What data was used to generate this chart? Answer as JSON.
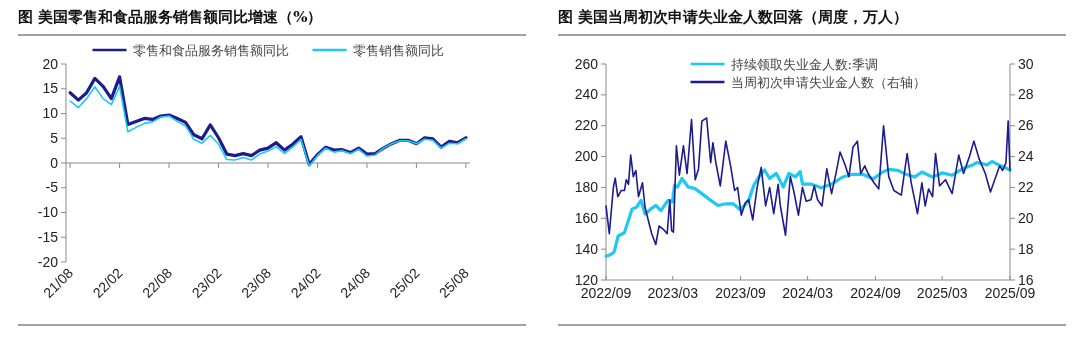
{
  "chart_data": [
    {
      "type": "line",
      "title": "图   美国零售和食品服务销售额同比增速（%）",
      "categories": [
        "21/08",
        null,
        null,
        null,
        null,
        null,
        "22/02",
        null,
        null,
        null,
        null,
        null,
        "22/08",
        null,
        null,
        null,
        null,
        null,
        "23/02",
        null,
        null,
        null,
        null,
        null,
        "23/08",
        null,
        null,
        null,
        null,
        null,
        "24/02",
        null,
        null,
        null,
        null,
        null,
        "24/08",
        null,
        null,
        null,
        null,
        null,
        "25/02",
        null,
        null,
        null,
        null,
        null,
        "25/08"
      ],
      "series": [
        {
          "name": "零售和食品服务销售额同比",
          "color": "#1c1c8c",
          "values": [
            14.2,
            12.7,
            14.2,
            17.1,
            15.5,
            13.0,
            17.4,
            7.8,
            8.4,
            9.0,
            8.8,
            9.5,
            9.7,
            9.0,
            8.2,
            5.7,
            4.9,
            7.7,
            5.1,
            1.8,
            1.5,
            1.9,
            1.5,
            2.6,
            3.0,
            4.1,
            2.6,
            3.8,
            5.3,
            -0.3,
            1.7,
            3.2,
            2.6,
            2.7,
            2.1,
            3.0,
            1.8,
            1.9,
            3.0,
            3.9,
            4.6,
            4.6,
            3.9,
            5.1,
            4.9,
            3.2,
            4.4,
            4.1,
            5.1
          ]
        },
        {
          "name": "零售销售额同比",
          "color": "#1ec8f0",
          "values": [
            12.5,
            11.2,
            13.0,
            15.4,
            13.0,
            11.8,
            15.5,
            6.3,
            7.2,
            8.0,
            8.3,
            9.3,
            9.5,
            8.4,
            7.5,
            4.8,
            4.0,
            5.6,
            3.8,
            0.7,
            0.6,
            1.1,
            0.6,
            1.8,
            2.4,
            3.3,
            1.9,
            3.2,
            4.8,
            -0.6,
            1.5,
            3.0,
            2.2,
            2.5,
            1.9,
            2.8,
            1.4,
            1.6,
            3.0,
            3.9,
            4.5,
            4.5,
            3.9,
            4.8,
            4.6,
            3.0,
            4.0,
            3.9,
            4.9
          ]
        }
      ],
      "ylim": [
        -20,
        20
      ],
      "yticks": [
        -20,
        -15,
        -10,
        -5,
        0,
        5,
        10,
        15,
        20
      ],
      "legend": "top"
    },
    {
      "type": "line",
      "title": "图   美国当周初次申请失业金人数回落（周度，万人）",
      "series": [
        {
          "name": "持续领取失业金人数:季调",
          "color": "#1ec8f0",
          "x": [
            "2022-09-01",
            "2022-09-14",
            "2022-09-23",
            "2022-10-04",
            "2022-10-21",
            "2022-11-11",
            "2022-11-23",
            "2022-12-05",
            "2022-12-16",
            "2023-01-01",
            "2023-01-14",
            "2023-01-28",
            "2023-02-16",
            "2023-02-28",
            "2023-03-06",
            "2023-03-14",
            "2023-03-26",
            "2023-04-12",
            "2023-05-01",
            "2023-05-19",
            "2023-06-12",
            "2023-07-02",
            "2023-07-23",
            "2023-08-12",
            "2023-09-01",
            "2023-09-23",
            "2023-10-07",
            "2023-10-21",
            "2023-11-05",
            "2023-11-19",
            "2023-12-07",
            "2023-12-26",
            "2024-01-10",
            "2024-01-28",
            "2024-02-10",
            "2024-02-16",
            "2024-03-10",
            "2024-04-07",
            "2024-05-05",
            "2024-06-03",
            "2024-07-01",
            "2024-07-28",
            "2024-08-26",
            "2024-09-19",
            "2024-10-07",
            "2024-11-01",
            "2024-11-19",
            "2024-12-16",
            "2025-01-05",
            "2025-02-03",
            "2025-03-01",
            "2025-03-28",
            "2025-04-26",
            "2025-05-23",
            "2025-06-04",
            "2025-07-01",
            "2025-07-14",
            "2025-08-07",
            "2025-09-01"
          ],
          "values": [
            135.4,
            136.5,
            138.2,
            148.5,
            150.7,
            166.1,
            167.2,
            171.6,
            162.8,
            166.1,
            168.3,
            165.0,
            171.6,
            170.5,
            181.4,
            180.3,
            185.8,
            180.3,
            179.2,
            176.0,
            171.6,
            168.3,
            169.4,
            169.4,
            165.4,
            171.6,
            181.4,
            186.9,
            191.3,
            185.8,
            189.1,
            180.3,
            189.1,
            186.9,
            190.2,
            182.2,
            182.2,
            179.8,
            182.2,
            186.6,
            188.5,
            188.5,
            185.5,
            189.9,
            191.7,
            191.1,
            188.9,
            186.7,
            190.0,
            186.7,
            189.4,
            187.9,
            192.2,
            194.6,
            196.2,
            194.6,
            196.8,
            194.0,
            191.3
          ]
        },
        {
          "name": "当周初次申请失业金人数（右轴）",
          "color": "#1c1c8c",
          "axis": "y2",
          "x": [
            "2022-09-01",
            "2022-09-10",
            "2022-09-21",
            "2022-09-26",
            "2022-10-03",
            "2022-10-12",
            "2022-10-21",
            "2022-10-26",
            "2022-11-01",
            "2022-11-07",
            "2022-11-14",
            "2022-11-21",
            "2022-11-28",
            "2022-12-09",
            "2022-12-16",
            "2023-01-03",
            "2023-01-14",
            "2023-01-23",
            "2023-02-03",
            "2023-02-14",
            "2023-02-21",
            "2023-02-26",
            "2023-03-03",
            "2023-03-11",
            "2023-03-19",
            "2023-03-30",
            "2023-04-09",
            "2023-04-21",
            "2023-05-01",
            "2023-05-10",
            "2023-05-19",
            "2023-06-01",
            "2023-06-12",
            "2023-06-18",
            "2023-06-26",
            "2023-07-08",
            "2023-07-23",
            "2023-08-05",
            "2023-08-16",
            "2023-08-24",
            "2023-09-03",
            "2023-09-14",
            "2023-09-23",
            "2023-10-04",
            "2023-10-16",
            "2023-10-27",
            "2023-11-08",
            "2023-11-19",
            "2023-11-30",
            "2023-12-12",
            "2023-12-18",
            "2024-01-01",
            "2024-01-14",
            "2024-01-23",
            "2024-02-05",
            "2024-02-16",
            "2024-02-26",
            "2024-03-10",
            "2024-03-19",
            "2024-03-28",
            "2024-04-09",
            "2024-04-22",
            "2024-05-05",
            "2024-05-16",
            "2024-05-28",
            "2024-06-10",
            "2024-06-21",
            "2024-07-02",
            "2024-07-14",
            "2024-07-23",
            "2024-08-03",
            "2024-08-12",
            "2024-08-28",
            "2024-09-10",
            "2024-09-23",
            "2024-10-07",
            "2024-10-21",
            "2024-11-10",
            "2024-11-26",
            "2024-12-07",
            "2024-12-24",
            "2025-01-05",
            "2025-01-14",
            "2025-01-23",
            "2025-02-03",
            "2025-02-11",
            "2025-02-22",
            "2025-03-10",
            "2025-03-28",
            "2025-04-15",
            "2025-04-28",
            "2025-05-14",
            "2025-05-26",
            "2025-06-10",
            "2025-06-26",
            "2025-07-10",
            "2025-07-23",
            "2025-08-04",
            "2025-08-12",
            "2025-08-21",
            "2025-08-27",
            "2025-09-01"
          ],
          "values": [
            20.8,
            19.0,
            22.0,
            22.6,
            21.4,
            21.8,
            21.8,
            22.5,
            22.2,
            24.1,
            22.7,
            23.1,
            21.4,
            22.3,
            20.7,
            19.0,
            18.3,
            19.5,
            19.3,
            19.0,
            21.2,
            19.2,
            19.1,
            24.7,
            22.8,
            24.7,
            22.9,
            26.4,
            22.5,
            23.2,
            26.3,
            26.5,
            23.6,
            24.9,
            23.6,
            22.1,
            25.0,
            23.4,
            21.8,
            22.0,
            20.2,
            21.0,
            21.2,
            19.9,
            22.0,
            23.3,
            20.8,
            22.0,
            20.3,
            22.2,
            20.8,
            18.9,
            22.7,
            21.8,
            20.2,
            22.0,
            21.1,
            21.2,
            22.1,
            21.2,
            20.8,
            23.2,
            21.6,
            22.8,
            24.3,
            23.5,
            22.7,
            24.6,
            25.0,
            22.9,
            23.4,
            22.9,
            22.3,
            21.9,
            26.0,
            22.7,
            21.8,
            21.5,
            24.2,
            22.3,
            20.3,
            22.3,
            20.8,
            21.9,
            21.4,
            24.2,
            22.1,
            22.5,
            21.6,
            24.1,
            22.9,
            24.0,
            25.0,
            23.8,
            22.9,
            21.7,
            22.6,
            23.4,
            23.1,
            23.6,
            26.3,
            23.1
          ]
        }
      ],
      "xlim": [
        "2022-09",
        "2025-09"
      ],
      "xticks": [
        {
          "value": "2022-09",
          "label": "2022/09"
        },
        {
          "value": "2023-03",
          "label": "2023/03"
        },
        {
          "value": "2023-09",
          "label": "2023/09"
        },
        {
          "value": "2024-03",
          "label": "2024/03"
        },
        {
          "value": "2024-09",
          "label": "2024/09"
        },
        {
          "value": "2025-03",
          "label": "2025/03"
        },
        {
          "value": "2025-09",
          "label": "2025/09"
        }
      ],
      "ylim": [
        120,
        260
      ],
      "yticks": [
        120,
        140,
        160,
        180,
        200,
        220,
        240,
        260
      ],
      "y2lim": [
        16,
        30
      ],
      "y2ticks": [
        16,
        18,
        20,
        22,
        24,
        26,
        28,
        30
      ],
      "legend": "top"
    }
  ]
}
